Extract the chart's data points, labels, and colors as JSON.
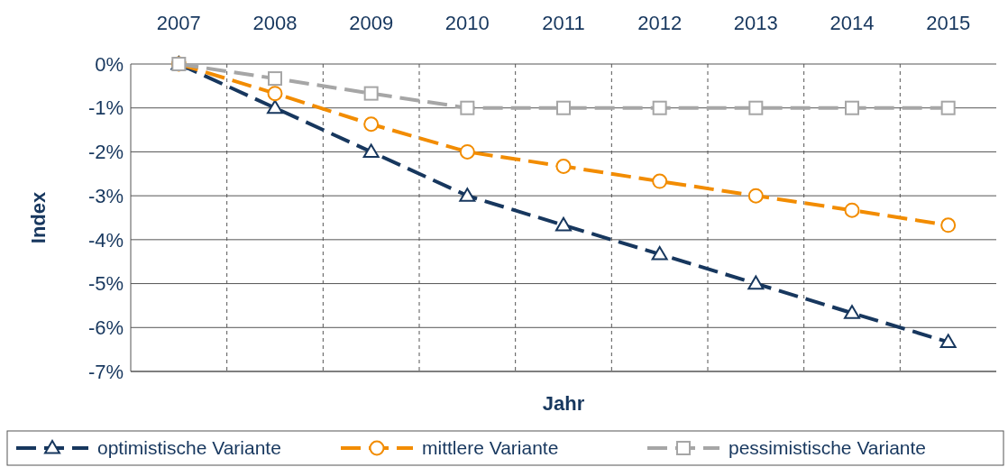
{
  "chart_data": {
    "type": "line",
    "xlabel": "Jahr",
    "ylabel": "Index",
    "categories": [
      "2007",
      "2008",
      "2009",
      "2010",
      "2011",
      "2012",
      "2013",
      "2014",
      "2015"
    ],
    "series": [
      {
        "name": "optimistische Variante",
        "color": "#17375e",
        "marker": "triangle",
        "values": [
          0,
          -1,
          -2,
          -3,
          -3.67,
          -4.33,
          -5,
          -5.67,
          -6.33
        ]
      },
      {
        "name": "mittlere Variante",
        "color": "#f28c00",
        "marker": "circle",
        "values": [
          0,
          -0.67,
          -1.37,
          -2,
          -2.33,
          -2.67,
          -3,
          -3.33,
          -3.67
        ]
      },
      {
        "name": "pessimistische Variante",
        "color": "#a6a6a6",
        "marker": "square",
        "values": [
          0,
          -0.33,
          -0.67,
          -1,
          -1,
          -1,
          -1,
          -1,
          -1
        ]
      }
    ],
    "ylim": [
      -7,
      0
    ],
    "yticks": [
      {
        "value": 0,
        "label": "0%"
      },
      {
        "value": -1,
        "label": "-1%"
      },
      {
        "value": -2,
        "label": "-2%"
      },
      {
        "value": -3,
        "label": "-3%"
      },
      {
        "value": -4,
        "label": "-4%"
      },
      {
        "value": -5,
        "label": "-5%"
      },
      {
        "value": -6,
        "label": "-6%"
      },
      {
        "value": -7,
        "label": "-7%"
      }
    ],
    "grid": true,
    "legend": "bottom",
    "line_style": "dashed"
  }
}
